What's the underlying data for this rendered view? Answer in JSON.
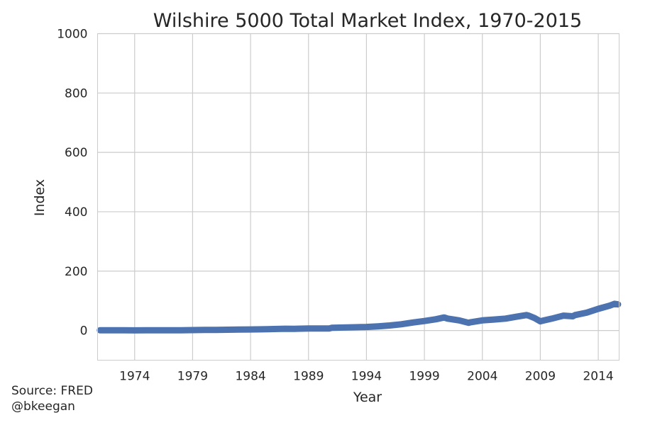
{
  "chart_data": {
    "type": "line",
    "title": "Wilshire 5000 Total Market Index, 1970-2015",
    "xlabel": "Year",
    "ylabel": "Index",
    "xlim": [
      1970.8,
      2015.8
    ],
    "ylim": [
      -100,
      1000
    ],
    "xticks": [
      "1974",
      "1979",
      "1984",
      "1989",
      "1994",
      "1999",
      "2004",
      "2009",
      "2014"
    ],
    "yticks": [
      "0",
      "200",
      "400",
      "600",
      "800",
      "1000"
    ],
    "grid": true,
    "line_color": "#4c72b0",
    "series": [
      {
        "x": [
          1971,
          1972,
          1973,
          1974,
          1975,
          1976,
          1977,
          1978,
          1979,
          1980,
          1981,
          1982,
          1983,
          1984,
          1985,
          1986,
          1987,
          1987.8,
          1988,
          1989,
          1990,
          1990.8,
          1991,
          1992,
          1993,
          1994,
          1995,
          1996,
          1997,
          1998,
          1999,
          2000,
          2000.7,
          2001,
          2002,
          2002.8,
          2003,
          2004,
          2005,
          2006,
          2007,
          2007.8,
          2008,
          2008.5,
          2009,
          2009.2,
          2010,
          2010.5,
          2011,
          2011.8,
          2012,
          2013,
          2014,
          2015,
          2015.4,
          2015.7
        ],
        "y": [
          1,
          1,
          1,
          0.5,
          1,
          1,
          1,
          1,
          1.5,
          2,
          2,
          2.5,
          3,
          3.5,
          4,
          5,
          6,
          5.5,
          6,
          7,
          7,
          7,
          9,
          10,
          11,
          12,
          14,
          17,
          21,
          27,
          32,
          38,
          44,
          40,
          34,
          26,
          28,
          34,
          37,
          40,
          47,
          52,
          50,
          42,
          31,
          33,
          40,
          45,
          50,
          48,
          52,
          60,
          73,
          84,
          90,
          88
        ]
      }
    ]
  },
  "footer": {
    "source": "Source: FRED",
    "handle": "@bkeegan"
  }
}
